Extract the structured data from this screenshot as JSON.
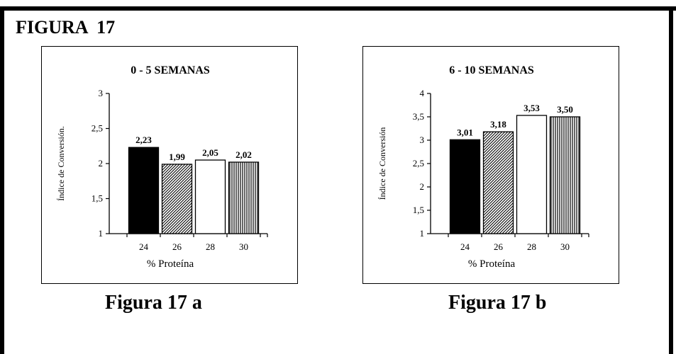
{
  "header": {
    "title": "FIGURA  17"
  },
  "captions": [
    "Figura 17 a",
    "Figura 17 b"
  ],
  "colors": {
    "solid": "#000000",
    "diagonal": "#000000",
    "open": "#ffffff",
    "vertical": "#000000"
  },
  "chart_data": [
    {
      "type": "bar",
      "title": "0 - 5 SEMANAS",
      "xlabel": "% Proteína",
      "ylabel": "Índice de Conversión.",
      "categories": [
        "24",
        "26",
        "28",
        "30"
      ],
      "values": [
        2.23,
        1.99,
        2.05,
        2.02
      ],
      "data_labels": [
        "2,23",
        "1,99",
        "2,05",
        "2,02"
      ],
      "fills": [
        "solid",
        "diagonal",
        "open",
        "vertical"
      ],
      "ylim": [
        1,
        3
      ],
      "yticks": [
        1,
        1.5,
        2,
        2.5,
        3
      ],
      "ytick_labels": [
        "1",
        "1,5",
        "2",
        "2,5",
        "3"
      ],
      "grid": false,
      "legend": "none"
    },
    {
      "type": "bar",
      "title": "6 - 10 SEMANAS",
      "xlabel": "% Proteína",
      "ylabel": "Índice de Conversión",
      "categories": [
        "24",
        "26",
        "28",
        "30"
      ],
      "values": [
        3.01,
        3.18,
        3.53,
        3.5
      ],
      "data_labels": [
        "3,01",
        "3,18",
        "3,53",
        "3,50"
      ],
      "fills": [
        "solid",
        "diagonal",
        "open",
        "vertical"
      ],
      "ylim": [
        1,
        4
      ],
      "yticks": [
        1,
        1.5,
        2,
        2.5,
        3,
        3.5,
        4
      ],
      "ytick_labels": [
        "1",
        "1,5",
        "2",
        "2,5",
        "3",
        "3,5",
        "4"
      ],
      "grid": false,
      "legend": "none"
    }
  ]
}
